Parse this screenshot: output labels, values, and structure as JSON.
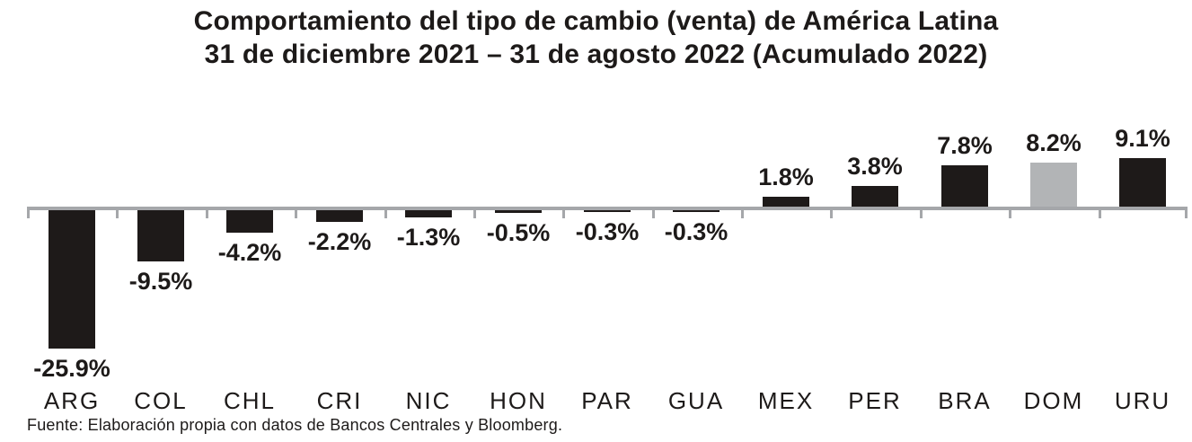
{
  "title": {
    "line1": "Comportamiento del tipo de cambio (venta) de América Latina",
    "line2": "31 de diciembre 2021 – 31 de agosto 2022 (Acumulado 2022)"
  },
  "source_note": "Fuente: Elaboración propia con datos de Bancos Centrales y Bloomberg.",
  "colors": {
    "bar": "#1e1a19",
    "highlight_bar": "#b2b4b6",
    "axis": "#a5a7aa",
    "text": "#1d1a19",
    "background": "#ffffff"
  },
  "chart_data": {
    "type": "bar",
    "title": "Comportamiento del tipo de cambio (venta) de América Latina 31 de diciembre 2021 – 31 de agosto 2022 (Acumulado 2022)",
    "categories": [
      "ARG",
      "COL",
      "CHL",
      "CRI",
      "NIC",
      "HON",
      "PAR",
      "GUA",
      "MEX",
      "PER",
      "BRA",
      "DOM",
      "URU"
    ],
    "values": [
      -25.9,
      -9.5,
      -4.2,
      -2.2,
      -1.3,
      -0.5,
      -0.3,
      -0.3,
      1.8,
      3.8,
      7.8,
      8.2,
      9.1
    ],
    "labels": [
      "-25.9%",
      "-9.5%",
      "-4.2%",
      "-2.2%",
      "-1.3%",
      "-0.5%",
      "-0.3%",
      "-0.3%",
      "1.8%",
      "3.8%",
      "7.8%",
      "8.2%",
      "9.1%"
    ],
    "highlight_index": 11,
    "highlight_category": "DOM",
    "unit": "%",
    "xlabel": "",
    "ylabel": "",
    "ylim": [
      -26,
      10
    ],
    "grid": false,
    "legend": false,
    "baseline": 0,
    "value_label_position": "outside-end",
    "source": "Fuente: Elaboración propia con datos de Bancos Centrales y Bloomberg."
  }
}
